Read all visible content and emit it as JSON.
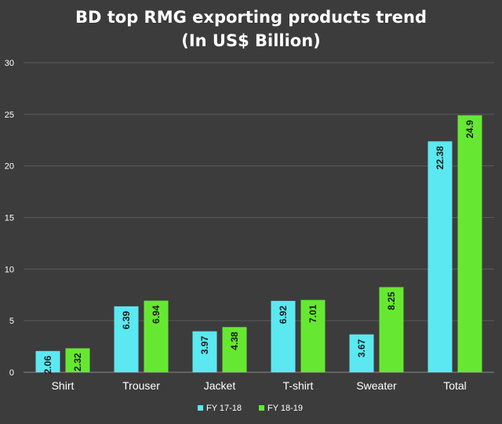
{
  "chart_data": {
    "type": "bar",
    "title": "BD top RMG exporting products trend",
    "subtitle": "(In US$ Billion)",
    "categories": [
      "Shirt",
      "Trouser",
      "Jacket",
      "T-shirt",
      "Sweater",
      "Total"
    ],
    "series": [
      {
        "name": "FY 17-18",
        "color": "#5be8f0",
        "values": [
          2.06,
          6.39,
          3.97,
          6.92,
          3.67,
          22.38
        ],
        "labels": [
          "2.06",
          "6.39",
          "3.97",
          "6.92",
          "3.67",
          "22.38"
        ]
      },
      {
        "name": "FY 18-19",
        "color": "#66e832",
        "values": [
          2.32,
          6.94,
          4.38,
          7.01,
          8.25,
          24.9
        ],
        "labels": [
          "2.32",
          "6.94",
          "4.38",
          "7.01",
          "8.25",
          "24.9"
        ]
      }
    ],
    "yticks": [
      "0",
      "5",
      "10",
      "15",
      "20",
      "25",
      "30"
    ],
    "ylim": [
      0,
      30
    ],
    "grid": true,
    "legend_position": "bottom-center",
    "data_label_orientation": "vertical",
    "background_color": "#3c3c3c",
    "grid_color": "#5a5a5a"
  }
}
